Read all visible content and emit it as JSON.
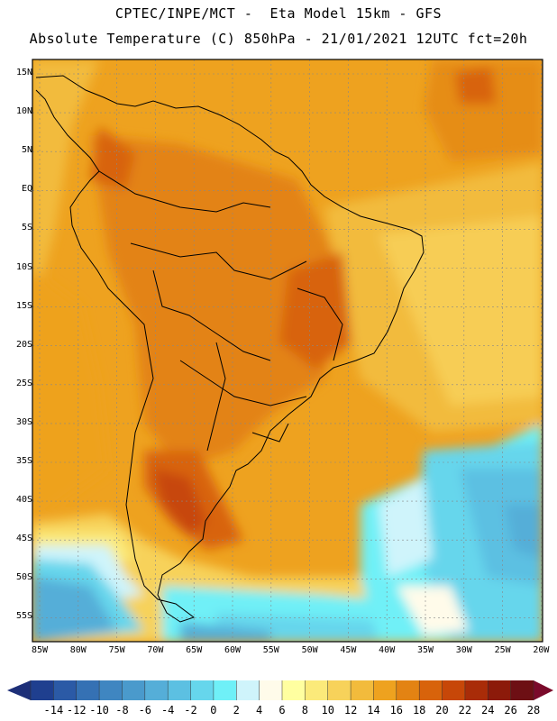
{
  "header": {
    "line1": "CPTEC/INPE/MCT -  Eta Model 15km - GFS",
    "line2": "Absolute Temperature (C) 850hPa - 21/01/2021 12UTC fct=20h"
  },
  "map": {
    "lat_labels": [
      "15N",
      "10N",
      "5N",
      "EQ",
      "5S",
      "10S",
      "15S",
      "20S",
      "25S",
      "30S",
      "35S",
      "40S",
      "45S",
      "50S",
      "55S"
    ],
    "lon_labels": [
      "85W",
      "80W",
      "75W",
      "70W",
      "65W",
      "60W",
      "55W",
      "50W",
      "45W",
      "40W",
      "35W",
      "30W",
      "25W",
      "20W"
    ]
  },
  "colorbar": {
    "labels": [
      "-14",
      "-12",
      "-10",
      "-8",
      "-6",
      "-4",
      "-2",
      "0",
      "2",
      "4",
      "6",
      "8",
      "10",
      "12",
      "14",
      "16",
      "18",
      "20",
      "22",
      "24",
      "26",
      "28"
    ],
    "colors": [
      "#1f3f8f",
      "#2b5aa6",
      "#3571b4",
      "#3f86c1",
      "#4a9acc",
      "#55aed8",
      "#5cc0e2",
      "#66d6ec",
      "#6ff0f7",
      "#cff4fb",
      "#fffbea",
      "#ffffa0",
      "#fbea7a",
      "#f7d25a",
      "#f2bb3c",
      "#eea21f",
      "#e38313",
      "#d8630b",
      "#c74708",
      "#a92c08",
      "#8c1a0a",
      "#6d0f14"
    ],
    "arrow_left_color": "#1d2f78",
    "arrow_right_color": "#7a0a2a"
  }
}
